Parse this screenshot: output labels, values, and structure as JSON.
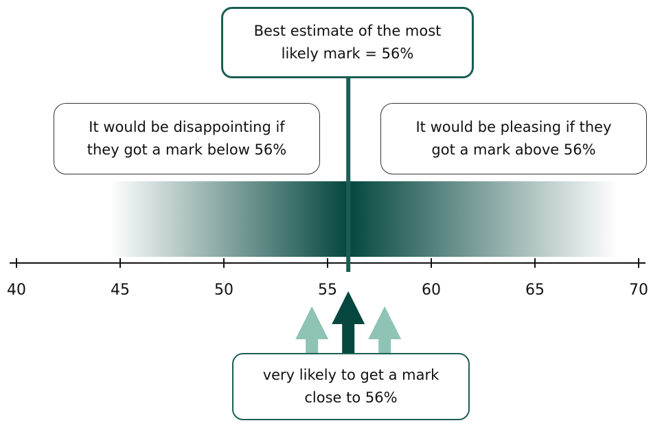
{
  "colors": {
    "dark_green": "#05473f",
    "mid_green": "#1a5e54",
    "light_green": "#8ec3b5",
    "axis": "#111111"
  },
  "callouts": {
    "best_estimate": "Best estimate of the most\nlikely mark = 56%",
    "disappointing": "It would be disappointing if\nthey got a mark below 56%",
    "pleasing": "It would be pleasing if they\ngot a mark above 56%",
    "very_likely": "very likely to get a mark\nclose to 56%"
  },
  "axis": {
    "min": 40,
    "max": 70,
    "ticks": [
      "40",
      "45",
      "50",
      "55",
      "60",
      "65",
      "70"
    ]
  },
  "estimate": 56,
  "gradient_range": [
    44.5,
    69
  ]
}
